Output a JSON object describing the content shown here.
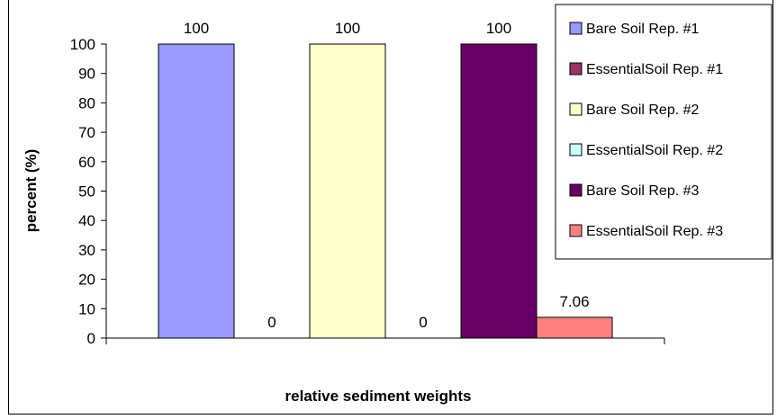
{
  "chart_data": {
    "type": "bar",
    "title": "",
    "xlabel": "relative sediment weights",
    "ylabel": "percent (%)",
    "ylim": [
      0,
      100
    ],
    "yticks": [
      0,
      10,
      20,
      30,
      40,
      50,
      60,
      70,
      80,
      90,
      100
    ],
    "grid": false,
    "legend_position": "top-right",
    "categories": [
      ""
    ],
    "series": [
      {
        "name": "Bare Soil Rep. #1",
        "values": [
          100
        ],
        "color": "#9999ff",
        "label": "100"
      },
      {
        "name": "EssentialSoil Rep. #1",
        "values": [
          0
        ],
        "color": "#993366",
        "label": "0"
      },
      {
        "name": "Bare Soil Rep. #2",
        "values": [
          100
        ],
        "color": "#ffffcc",
        "label": "100"
      },
      {
        "name": "EssentialSoil Rep. #2",
        "values": [
          0
        ],
        "color": "#ccffff",
        "label": "0"
      },
      {
        "name": "Bare Soil Rep. #3",
        "values": [
          100
        ],
        "color": "#660066",
        "label": "100"
      },
      {
        "name": "EssentialSoil Rep. #3",
        "values": [
          7.06
        ],
        "color": "#ff8080",
        "label": "7.06"
      }
    ]
  }
}
